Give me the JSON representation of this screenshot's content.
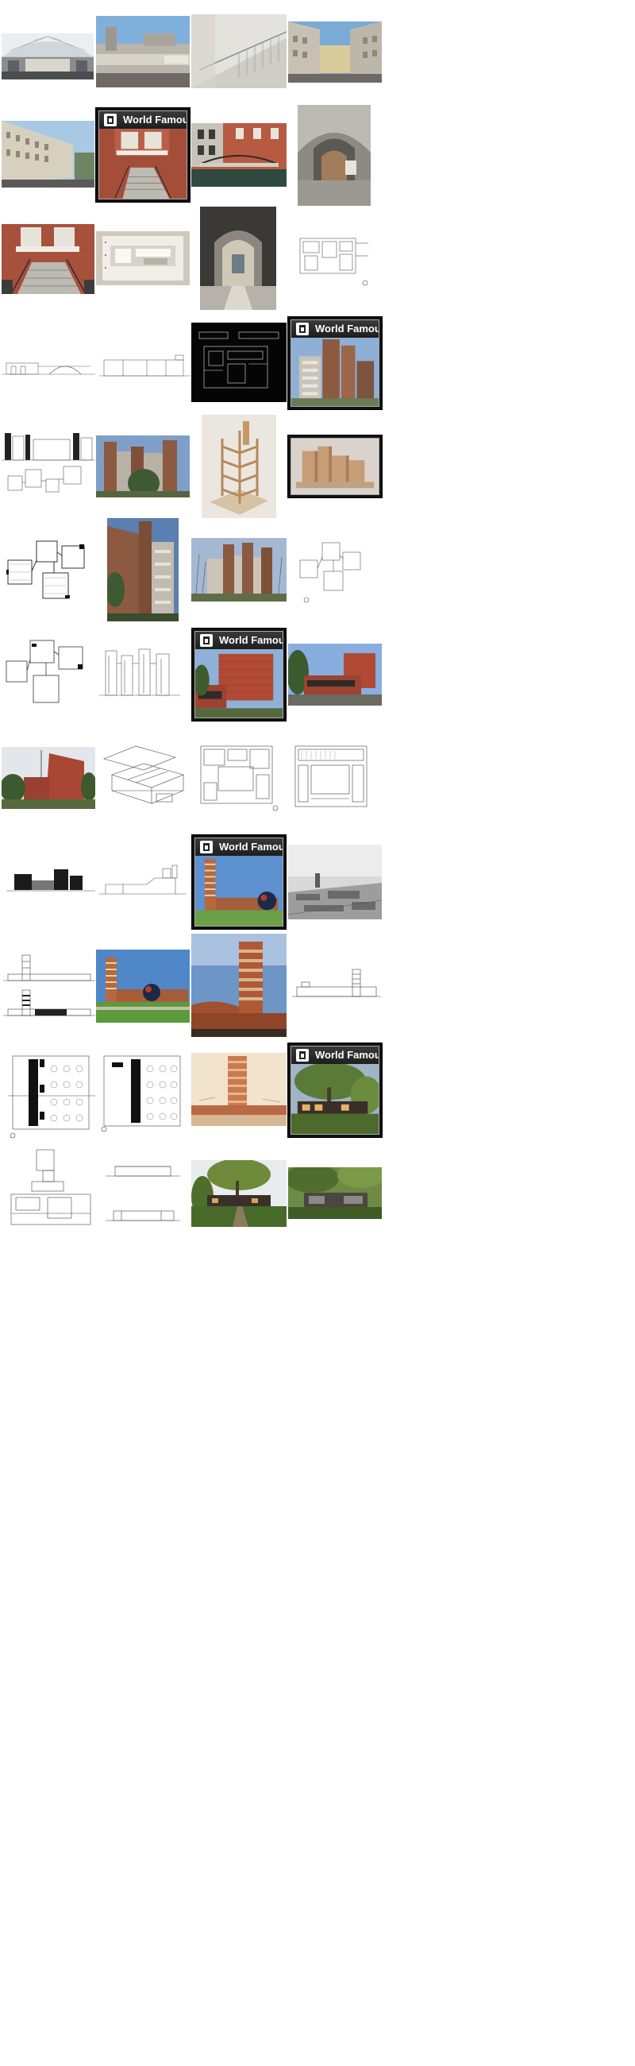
{
  "page": {
    "background": "#ffffff"
  },
  "watermark": {
    "title": "World Famous Architecture",
    "colors": {
      "banner": "#262626",
      "text": "#ffffff"
    }
  },
  "tiles": [
    {
      "kind": "photo",
      "subject": "glass-roof-banking-hall"
    },
    {
      "kind": "photo",
      "subject": "building-cornice-statue"
    },
    {
      "kind": "photo",
      "subject": "staircase-handrail"
    },
    {
      "kind": "photo",
      "subject": "street-facades"
    },
    {
      "kind": "photo",
      "subject": "street-building-facade"
    },
    {
      "kind": "photo-watermark",
      "subject": "brick-stair-entrance"
    },
    {
      "kind": "photo",
      "subject": "canal-bridge-brick"
    },
    {
      "kind": "photo",
      "subject": "arched-doorway-courtyard"
    },
    {
      "kind": "photo",
      "subject": "brick-stair-entrance"
    },
    {
      "kind": "model",
      "subject": "white-section-model"
    },
    {
      "kind": "photo",
      "subject": "arched-passage"
    },
    {
      "kind": "drawing",
      "subject": "site-plan"
    },
    {
      "kind": "drawing",
      "subject": "elevation-bridge"
    },
    {
      "kind": "drawing",
      "subject": "section-long"
    },
    {
      "kind": "drawing-dark",
      "subject": "plan-on-black"
    },
    {
      "kind": "photo-watermark",
      "subject": "brick-towers"
    },
    {
      "kind": "drawing",
      "subject": "elevation-towers-and-plan"
    },
    {
      "kind": "photo",
      "subject": "brick-towers-trees"
    },
    {
      "kind": "model",
      "subject": "timber-frame-model"
    },
    {
      "kind": "model",
      "subject": "massing-model"
    },
    {
      "kind": "drawing",
      "subject": "cluster-plan"
    },
    {
      "kind": "photo",
      "subject": "tower-close"
    },
    {
      "kind": "photo",
      "subject": "towers-trees-winter"
    },
    {
      "kind": "drawing",
      "subject": "cluster-plan-small"
    },
    {
      "kind": "drawing",
      "subject": "cluster-plan-b"
    },
    {
      "kind": "drawing",
      "subject": "elevation-vertical"
    },
    {
      "kind": "photo-watermark",
      "subject": "brick-cubic-building"
    },
    {
      "kind": "photo",
      "subject": "brick-cubic-building-wide"
    },
    {
      "kind": "photo",
      "subject": "brick-building-trees"
    },
    {
      "kind": "drawing",
      "subject": "axonometric"
    },
    {
      "kind": "drawing",
      "subject": "floor-plan-a"
    },
    {
      "kind": "drawing",
      "subject": "floor-plan-b"
    },
    {
      "kind": "drawing",
      "subject": "elevation-dark-mass"
    },
    {
      "kind": "drawing",
      "subject": "section-small"
    },
    {
      "kind": "photo-watermark",
      "subject": "research-tower-sculpture"
    },
    {
      "kind": "photo",
      "subject": "aerial-bw"
    },
    {
      "kind": "drawing",
      "subject": "tower-elevations"
    },
    {
      "kind": "photo",
      "subject": "tower-lawn-sphere"
    },
    {
      "kind": "photo",
      "subject": "tower-sky"
    },
    {
      "kind": "drawing",
      "subject": "tower-elevation-long"
    },
    {
      "kind": "drawing",
      "subject": "column-grid-plan-a"
    },
    {
      "kind": "drawing",
      "subject": "column-grid-plan-b"
    },
    {
      "kind": "photo",
      "subject": "tower-rendering-sepia"
    },
    {
      "kind": "photo-watermark",
      "subject": "house-tree"
    },
    {
      "kind": "drawing",
      "subject": "house-plan"
    },
    {
      "kind": "drawing",
      "subject": "house-elevations"
    },
    {
      "kind": "photo",
      "subject": "house-tree-garden"
    },
    {
      "kind": "photo",
      "subject": "house-trees"
    }
  ]
}
